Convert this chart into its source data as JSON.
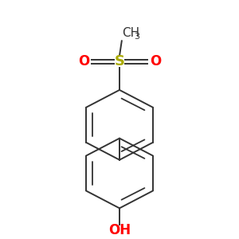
{
  "bg_color": "#ffffff",
  "bond_color": "#333333",
  "sulfur_color": "#aaaa00",
  "oxygen_color": "#ff0000",
  "carbon_color": "#333333",
  "figsize": [
    3.0,
    3.0
  ],
  "dpi": 100,
  "lw": 1.4,
  "lw_inner": 1.3,
  "ch3_text": "CH",
  "ch3_sub": "3",
  "s_text": "S",
  "o_text": "O",
  "oh_text": "OH"
}
